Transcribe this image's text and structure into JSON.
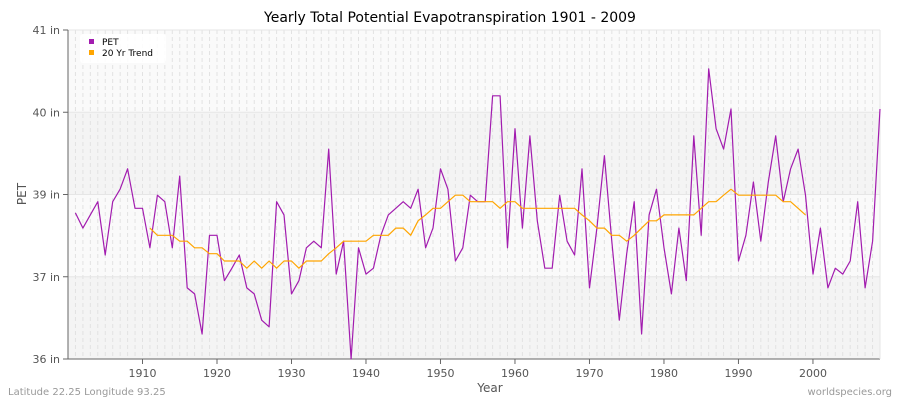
{
  "chart_data": {
    "type": "line",
    "title": "Yearly Total Potential Evapotranspiration 1901 - 2009",
    "xlabel": "Year",
    "ylabel": "PET",
    "xlim": [
      1900,
      2009
    ],
    "ylim": [
      36,
      41
    ],
    "x_ticks": [
      1910,
      1920,
      1930,
      1940,
      1950,
      1960,
      1970,
      1980,
      1990,
      2000
    ],
    "y_ticks": [
      {
        "value": 36,
        "label": "36 in"
      },
      {
        "value": 37.25,
        "label": "37 in"
      },
      {
        "value": 38.5,
        "label": "39 in"
      },
      {
        "value": 39.75,
        "label": "40 in"
      },
      {
        "value": 41,
        "label": "41 in"
      }
    ],
    "grid": true,
    "legend_position": "top-left",
    "series": [
      {
        "name": "PET",
        "color": "#a21caf",
        "x_start": 1901,
        "values": [
          38.22,
          37.99,
          38.19,
          38.39,
          37.58,
          38.39,
          38.58,
          38.89,
          38.29,
          38.29,
          37.69,
          38.49,
          38.39,
          37.69,
          38.78,
          37.08,
          36.99,
          36.38,
          37.88,
          37.88,
          37.19,
          37.38,
          37.58,
          37.08,
          36.99,
          36.59,
          36.49,
          38.39,
          38.19,
          36.99,
          37.19,
          37.69,
          37.79,
          37.69,
          39.19,
          37.29,
          37.79,
          36.0,
          37.69,
          37.29,
          37.38,
          37.88,
          38.19,
          38.29,
          38.39,
          38.29,
          38.58,
          37.69,
          37.99,
          38.89,
          38.58,
          37.49,
          37.69,
          38.49,
          38.39,
          38.39,
          40.0,
          40.0,
          37.69,
          39.5,
          37.99,
          39.39,
          38.1,
          37.38,
          37.38,
          38.49,
          37.79,
          37.58,
          38.89,
          37.08,
          37.99,
          39.09,
          37.79,
          36.59,
          37.6,
          38.39,
          36.38,
          38.19,
          38.58,
          37.69,
          36.99,
          37.99,
          37.19,
          39.39,
          37.88,
          40.41,
          39.5,
          39.19,
          39.8,
          37.49,
          37.88,
          38.69,
          37.79,
          38.69,
          39.39,
          38.39,
          38.89,
          39.19,
          38.49,
          37.29,
          37.99,
          37.08,
          37.38,
          37.29,
          37.49,
          38.39,
          37.08,
          37.79,
          39.8
        ]
      },
      {
        "name": "20 Yr Trend",
        "color": "#ffa500",
        "x_start": 1911,
        "values": [
          37.99,
          37.88,
          37.88,
          37.88,
          37.79,
          37.79,
          37.69,
          37.69,
          37.6,
          37.6,
          37.49,
          37.49,
          37.49,
          37.38,
          37.49,
          37.38,
          37.49,
          37.38,
          37.49,
          37.49,
          37.38,
          37.49,
          37.49,
          37.49,
          37.6,
          37.69,
          37.79,
          37.79,
          37.79,
          37.79,
          37.88,
          37.88,
          37.88,
          37.99,
          37.99,
          37.88,
          38.1,
          38.19,
          38.29,
          38.29,
          38.39,
          38.49,
          38.49,
          38.39,
          38.39,
          38.39,
          38.39,
          38.29,
          38.39,
          38.39,
          38.29,
          38.29,
          38.29,
          38.29,
          38.29,
          38.29,
          38.29,
          38.29,
          38.19,
          38.1,
          37.99,
          37.99,
          37.88,
          37.88,
          37.79,
          37.88,
          37.99,
          38.1,
          38.1,
          38.19,
          38.19,
          38.19,
          38.19,
          38.19,
          38.29,
          38.39,
          38.39,
          38.49,
          38.58,
          38.49,
          38.49,
          38.49,
          38.49,
          38.49,
          38.49,
          38.39,
          38.39,
          38.29,
          38.19
        ]
      }
    ]
  },
  "footer": {
    "location": "Latitude 22.25 Longitude 93.25",
    "source": "worldspecies.org"
  }
}
